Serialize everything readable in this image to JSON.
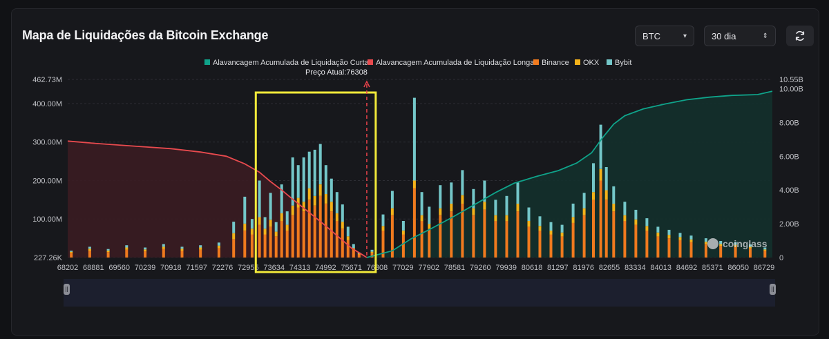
{
  "header": {
    "title": "Mapa de Liquidações da Bitcoin Exchange",
    "coin_select": "BTC",
    "period_select": "30 dia",
    "refresh_icon": "refresh-icon"
  },
  "colors": {
    "short": "#0fa38a",
    "long": "#e84a4e",
    "binance": "#f07a1e",
    "okx": "#f3b21a",
    "bybit": "#74c7c9",
    "highlight": "#f2ea3a"
  },
  "watermark": "coinglass",
  "chart_data": {
    "type": "bar",
    "title": "",
    "legend": [
      "Alavancagem Acumulada de Liquidação Curta",
      "Alavancagem Acumulada de Liquidação Longa",
      "Binance",
      "OKX",
      "Bybit"
    ],
    "legend_position": "top-center",
    "current_price_label": "Preço Atual:76308",
    "current_price": 76308,
    "x_range": [
      68202,
      87300
    ],
    "x_tick_labels": [
      "68202",
      "68881",
      "69560",
      "70239",
      "70918",
      "71597",
      "72276",
      "72955",
      "73634",
      "74313",
      "74992",
      "75671",
      "76308",
      "77029",
      "77902",
      "78581",
      "79260",
      "79939",
      "80618",
      "81297",
      "81976",
      "82655",
      "83334",
      "84013",
      "84692",
      "85371",
      "86050",
      "86729"
    ],
    "y_left_tick_labels": [
      "462.73M",
      "400.00M",
      "300.00M",
      "200.00M",
      "100.00M",
      "227.26K"
    ],
    "y_left_ticks": [
      462.73,
      400,
      300,
      200,
      100,
      0.227
    ],
    "y_left_range": [
      0,
      462.73
    ],
    "y_left_unit": "M",
    "y_right_tick_labels": [
      "10.55B",
      "10.00B",
      "8.00B",
      "6.00B",
      "4.00B",
      "2.00B",
      "0"
    ],
    "y_right_ticks": [
      10.55,
      10,
      8,
      6,
      4,
      2,
      0
    ],
    "y_right_range": [
      0,
      10.55
    ],
    "y_right_unit": "B",
    "grid": true,
    "highlight_range": [
      73300,
      76550
    ],
    "long_cumulative": {
      "name": "Alavancagem Acumulada de Liquidação Longa",
      "x": [
        68202,
        69000,
        70000,
        71000,
        71800,
        72500,
        73000,
        73400,
        73700,
        74000,
        74300,
        74700,
        75100,
        75500,
        75900,
        76200,
        76308
      ],
      "y": [
        6.9,
        6.75,
        6.6,
        6.45,
        6.25,
        6.0,
        5.55,
        5.05,
        4.5,
        4.0,
        3.45,
        2.75,
        2.05,
        1.3,
        0.55,
        0.15,
        0.0
      ]
    },
    "short_cumulative": {
      "name": "Alavancagem Acumulada de Liquidação Curta",
      "x": [
        76308,
        77000,
        77500,
        78000,
        78600,
        79200,
        79800,
        80300,
        80900,
        81500,
        82000,
        82400,
        82700,
        83000,
        83300,
        83800,
        84400,
        85000,
        85600,
        86200,
        86900,
        87300
      ],
      "y": [
        0.0,
        0.4,
        1.1,
        1.65,
        2.35,
        3.1,
        3.85,
        4.4,
        4.8,
        5.15,
        5.6,
        6.2,
        7.1,
        7.9,
        8.4,
        8.8,
        9.1,
        9.35,
        9.5,
        9.6,
        9.65,
        9.85
      ]
    },
    "bars": {
      "note_units": "liquidation leverage in M per price level",
      "x": [
        68300,
        68800,
        69300,
        69800,
        70300,
        70800,
        71300,
        71800,
        72300,
        72700,
        73000,
        73200,
        73400,
        73550,
        73700,
        73850,
        74000,
        74150,
        74300,
        74450,
        74600,
        74750,
        74900,
        75050,
        75200,
        75350,
        75500,
        75650,
        75800,
        75950,
        76100,
        76450,
        76750,
        77000,
        77300,
        77600,
        77800,
        78000,
        78300,
        78600,
        78900,
        79200,
        79500,
        79800,
        80100,
        80400,
        80700,
        81000,
        81300,
        81600,
        81900,
        82200,
        82450,
        82650,
        82800,
        83000,
        83300,
        83600,
        83900,
        84200,
        84500,
        84800,
        85100,
        85500,
        85900,
        86300,
        86700,
        87100
      ],
      "binance": [
        12,
        18,
        14,
        20,
        16,
        22,
        18,
        20,
        24,
        48,
        70,
        60,
        85,
        60,
        80,
        55,
        95,
        70,
        110,
        130,
        120,
        150,
        135,
        160,
        140,
        120,
        95,
        75,
        45,
        20,
        8,
        12,
        70,
        110,
        60,
        180,
        95,
        75,
        110,
        120,
        140,
        110,
        125,
        95,
        95,
        120,
        80,
        70,
        60,
        55,
        90,
        110,
        150,
        200,
        150,
        120,
        95,
        85,
        70,
        55,
        50,
        45,
        40,
        35,
        30,
        28,
        24,
        18
      ],
      "okx": [
        3,
        5,
        4,
        6,
        5,
        6,
        5,
        6,
        7,
        15,
        18,
        15,
        20,
        15,
        18,
        12,
        20,
        15,
        25,
        25,
        25,
        30,
        25,
        30,
        25,
        25,
        20,
        18,
        10,
        5,
        2,
        3,
        12,
        18,
        10,
        20,
        15,
        12,
        18,
        20,
        22,
        18,
        20,
        15,
        15,
        20,
        15,
        12,
        10,
        10,
        15,
        18,
        20,
        30,
        25,
        20,
        15,
        14,
        12,
        10,
        9,
        8,
        7,
        6,
        5,
        5,
        4,
        3
      ],
      "bybit": [
        3,
        5,
        4,
        6,
        5,
        7,
        5,
        6,
        8,
        30,
        70,
        25,
        95,
        30,
        70,
        25,
        75,
        35,
        125,
        85,
        115,
        95,
        120,
        105,
        75,
        60,
        55,
        45,
        25,
        10,
        3,
        5,
        30,
        45,
        25,
        215,
        60,
        45,
        60,
        55,
        65,
        50,
        55,
        40,
        50,
        55,
        35,
        25,
        22,
        20,
        35,
        40,
        75,
        115,
        60,
        45,
        35,
        25,
        20,
        15,
        13,
        11,
        10,
        9,
        8,
        7,
        6,
        5
      ]
    }
  }
}
